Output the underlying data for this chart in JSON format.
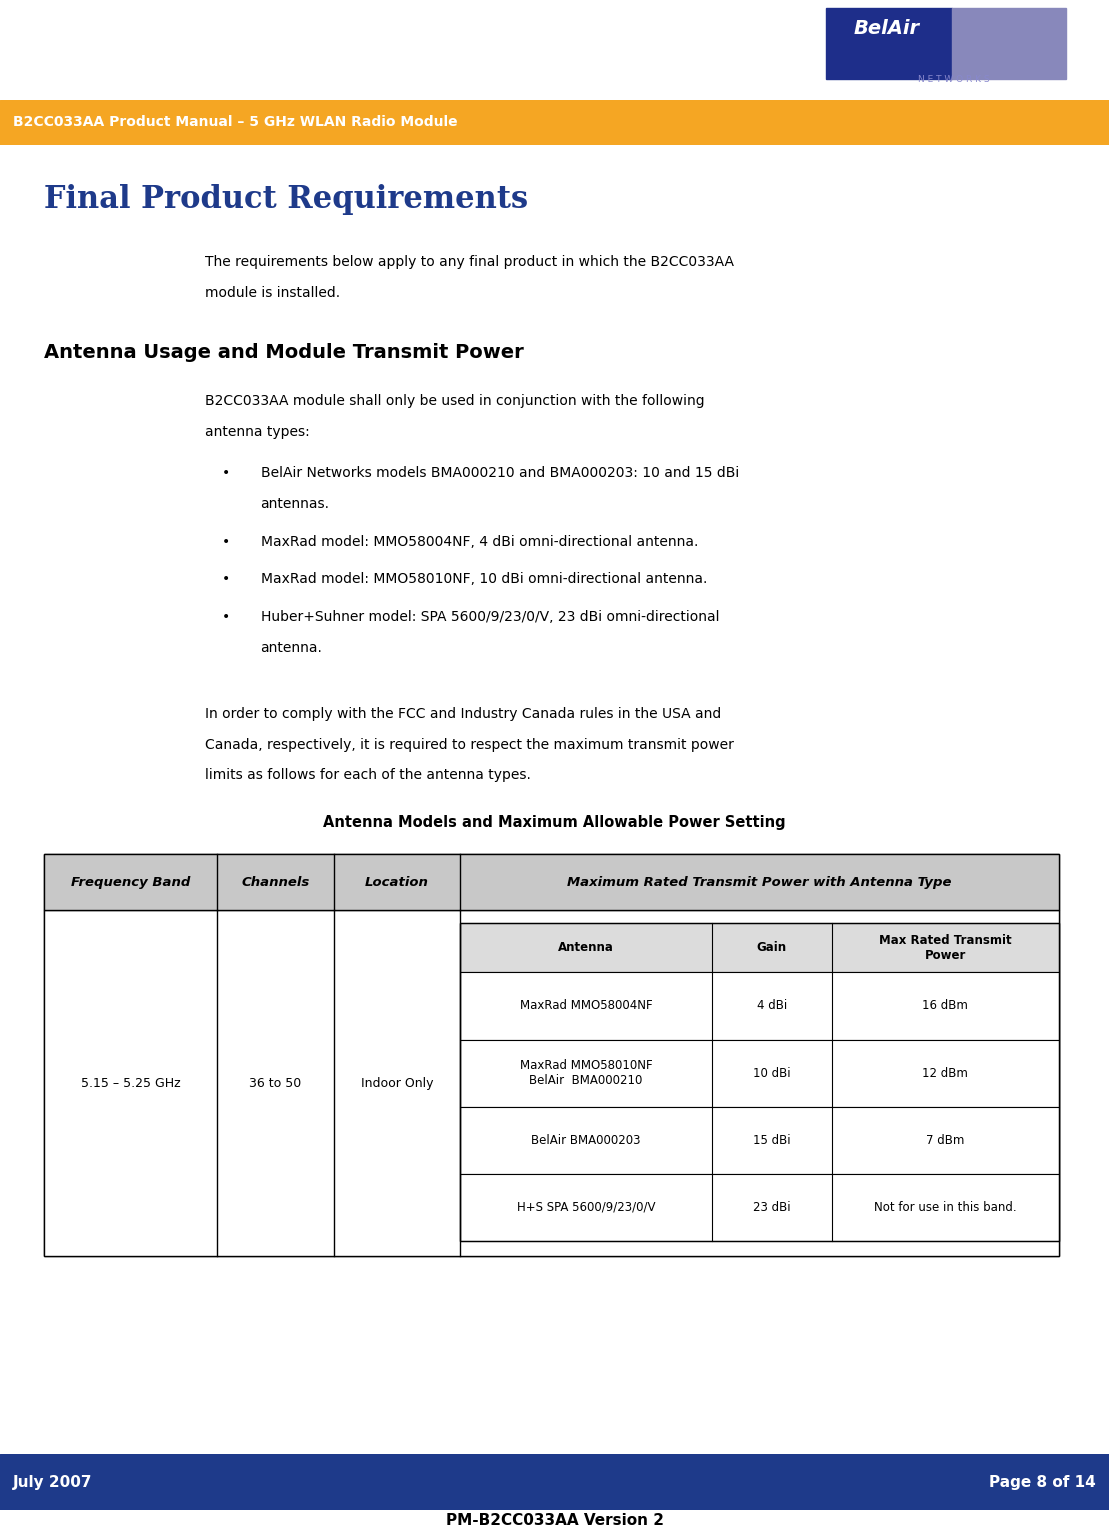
{
  "page_width": 11.09,
  "page_height": 15.31,
  "dpi": 100,
  "header_bar_color": "#F5A623",
  "header_bar_text": "B2CC033AA Product Manual – 5 GHz WLAN Radio Module",
  "header_bar_text_color": "#FFFFFF",
  "footer_bar_color": "#1E3A8A",
  "footer_left": "July 2007",
  "footer_right": "Page 8 of 14",
  "footer_text_color": "#FFFFFF",
  "footer_bottom_text": "PM-B2CC033AA Version 2",
  "footer_bottom_color": "#000000",
  "title_text": "Final Product Requirements",
  "title_color": "#1E3A8A",
  "section_heading": "Antenna Usage and Module Transmit Power",
  "section_heading_color": "#000000",
  "body_text_color": "#000000",
  "body_indent": 0.18,
  "intro_text": "The requirements below apply to any final product in which the B2CC033AA\nmodule is installed.",
  "section_body": "B2CC033AA module shall only be used in conjunction with the following\nantenna types:",
  "bullets": [
    "BelAir Networks models BMA000210 and BMA000203: 10 and 15 dBi\nantennas.",
    "MaxRad model: MMO58004NF, 4 dBi omni-directional antenna.",
    "MaxRad model: MMO58010NF, 10 dBi omni-directional antenna.",
    "Huber+Suhner model: SPA 5600/9/23/0/V, 23 dBi omni-directional\nantenna."
  ],
  "comply_text": "In order to comply with the FCC and Industry Canada rules in the USA and\nCanada, respectively, it is required to respect the maximum transmit power\nlimits as follows for each of the antenna types.",
  "table_title": "Antenna Models and Maximum Allowable Power Setting",
  "table_header_bg": "#C8C8C8",
  "table_border_color": "#000000",
  "col_headers": [
    "Frequency Band",
    "Channels",
    "Location",
    "Maximum Rated Transmit Power with Antenna Type"
  ],
  "freq_band": "5.15 – 5.25 GHz",
  "channels": "36 to 50",
  "location": "Indoor Only",
  "inner_col_headers": [
    "Antenna",
    "Gain",
    "Max Rated Transmit\nPower"
  ],
  "inner_rows": [
    [
      "MaxRad MMO58004NF",
      "4 dBi",
      "16 dBm"
    ],
    [
      "MaxRad MMO58010NF\nBelAir  BMA000210",
      "10 dBi",
      "12 dBm"
    ],
    [
      "BelAir BMA000203",
      "15 dBi",
      "7 dBm"
    ],
    [
      "H+S SPA 5600/9/23/0/V",
      "23 dBi",
      "Not for use in this band."
    ]
  ],
  "logo_blue": "#1E2E8A",
  "logo_purple": "#8888BB",
  "logo_text_color": "#8888CC"
}
